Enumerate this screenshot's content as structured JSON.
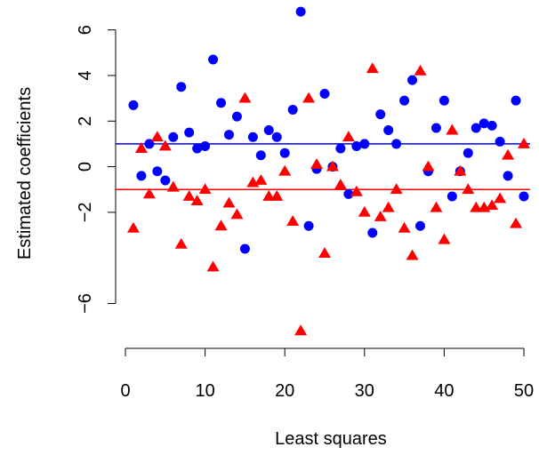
{
  "chart_data": {
    "type": "scatter",
    "xlabel": "Least squares",
    "ylabel": "Estimated coefficients",
    "xlim": [
      0,
      50
    ],
    "ylim": [
      -7.5,
      7
    ],
    "x_ticks": [
      0,
      10,
      20,
      30,
      40,
      50
    ],
    "y_ticks": [
      -6,
      -2,
      0,
      2,
      4,
      6
    ],
    "grid": false,
    "legend": "none",
    "colors": {
      "blue": "#0000ff",
      "red": "#ff0000"
    },
    "reference_lines": [
      {
        "y": 1,
        "color": "#0000ff"
      },
      {
        "y": -1,
        "color": "#ff0000"
      }
    ],
    "series": [
      {
        "marker": "circle",
        "color": "#0000ff",
        "x": [
          1,
          2,
          3,
          4,
          5,
          6,
          7,
          8,
          9,
          10,
          11,
          12,
          13,
          14,
          15,
          16,
          17,
          18,
          19,
          20,
          21,
          22,
          23,
          24,
          25,
          26,
          27,
          28,
          29,
          30,
          31,
          32,
          33,
          34,
          35,
          36,
          37,
          38,
          39,
          40,
          41,
          42,
          43,
          44,
          45,
          46,
          47,
          48,
          49,
          50
        ],
        "y": [
          2.7,
          -0.4,
          1.0,
          -0.2,
          -0.6,
          1.3,
          3.5,
          1.5,
          0.8,
          0.9,
          4.7,
          2.8,
          1.4,
          2.2,
          -3.6,
          1.3,
          0.5,
          1.6,
          1.3,
          0.6,
          2.5,
          6.8,
          -2.6,
          -0.1,
          3.2,
          0.0,
          0.8,
          -1.2,
          0.9,
          1.0,
          -2.9,
          2.3,
          1.6,
          1.0,
          2.9,
          3.8,
          -2.6,
          -0.2,
          1.7,
          2.9,
          -1.3,
          -0.2,
          0.6,
          1.7,
          1.9,
          1.8,
          1.1,
          -0.4,
          2.9,
          -1.3
        ]
      },
      {
        "marker": "triangle",
        "color": "#ff0000",
        "x": [
          1,
          2,
          3,
          4,
          5,
          6,
          7,
          8,
          9,
          10,
          11,
          12,
          13,
          14,
          15,
          16,
          17,
          18,
          19,
          20,
          21,
          22,
          23,
          24,
          25,
          26,
          27,
          28,
          29,
          30,
          31,
          32,
          33,
          34,
          35,
          36,
          37,
          38,
          39,
          40,
          41,
          42,
          43,
          44,
          45,
          46,
          47,
          48,
          49,
          50
        ],
        "y": [
          -2.7,
          0.8,
          -1.2,
          1.3,
          0.9,
          -0.9,
          -3.4,
          -1.3,
          -1.5,
          -1.0,
          -4.4,
          -2.6,
          -1.6,
          -2.1,
          3.0,
          -0.7,
          -0.6,
          -1.3,
          -1.3,
          -0.2,
          -2.4,
          -7.2,
          3.0,
          0.1,
          -3.8,
          0.0,
          -0.8,
          1.3,
          -1.1,
          -2.0,
          4.3,
          -2.2,
          -1.8,
          -1.0,
          -2.7,
          -3.9,
          4.2,
          0.0,
          -1.8,
          -3.2,
          1.6,
          -0.2,
          -1.0,
          -1.8,
          -1.8,
          -1.7,
          -1.4,
          0.5,
          -2.5,
          1.0
        ]
      }
    ]
  }
}
